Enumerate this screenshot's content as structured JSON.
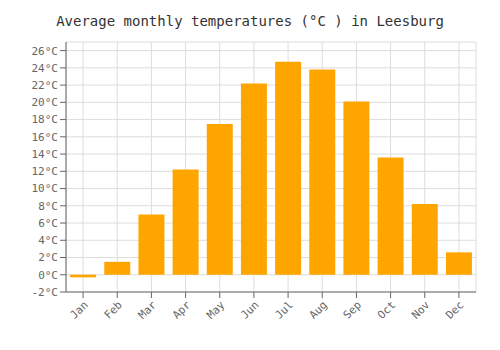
{
  "chart_data": {
    "type": "bar",
    "title": "Average monthly temperatures (°C ) in Leesburg",
    "categories": [
      "Jan",
      "Feb",
      "Mar",
      "Apr",
      "May",
      "Jun",
      "Jul",
      "Aug",
      "Sep",
      "Oct",
      "Nov",
      "Dec"
    ],
    "values": [
      -0.3,
      1.5,
      7.0,
      12.2,
      17.5,
      22.2,
      24.7,
      23.8,
      20.1,
      13.6,
      8.2,
      2.6
    ],
    "color": "#FFA500",
    "ylim": [
      -2,
      27
    ],
    "yticks": [
      {
        "value": -2,
        "label": "-2°C"
      },
      {
        "value": 0,
        "label": "0°C"
      },
      {
        "value": 2,
        "label": "2°C"
      },
      {
        "value": 4,
        "label": "4°C"
      },
      {
        "value": 6,
        "label": "6°C"
      },
      {
        "value": 8,
        "label": "8°C"
      },
      {
        "value": 10,
        "label": "10°C"
      },
      {
        "value": 12,
        "label": "12°C"
      },
      {
        "value": 14,
        "label": "14°C"
      },
      {
        "value": 16,
        "label": "16°C"
      },
      {
        "value": 18,
        "label": "18°C"
      },
      {
        "value": 20,
        "label": "20°C"
      },
      {
        "value": 22,
        "label": "22°C"
      },
      {
        "value": 24,
        "label": "24°C"
      },
      {
        "value": 26,
        "label": "26°C"
      }
    ],
    "grid": true
  }
}
